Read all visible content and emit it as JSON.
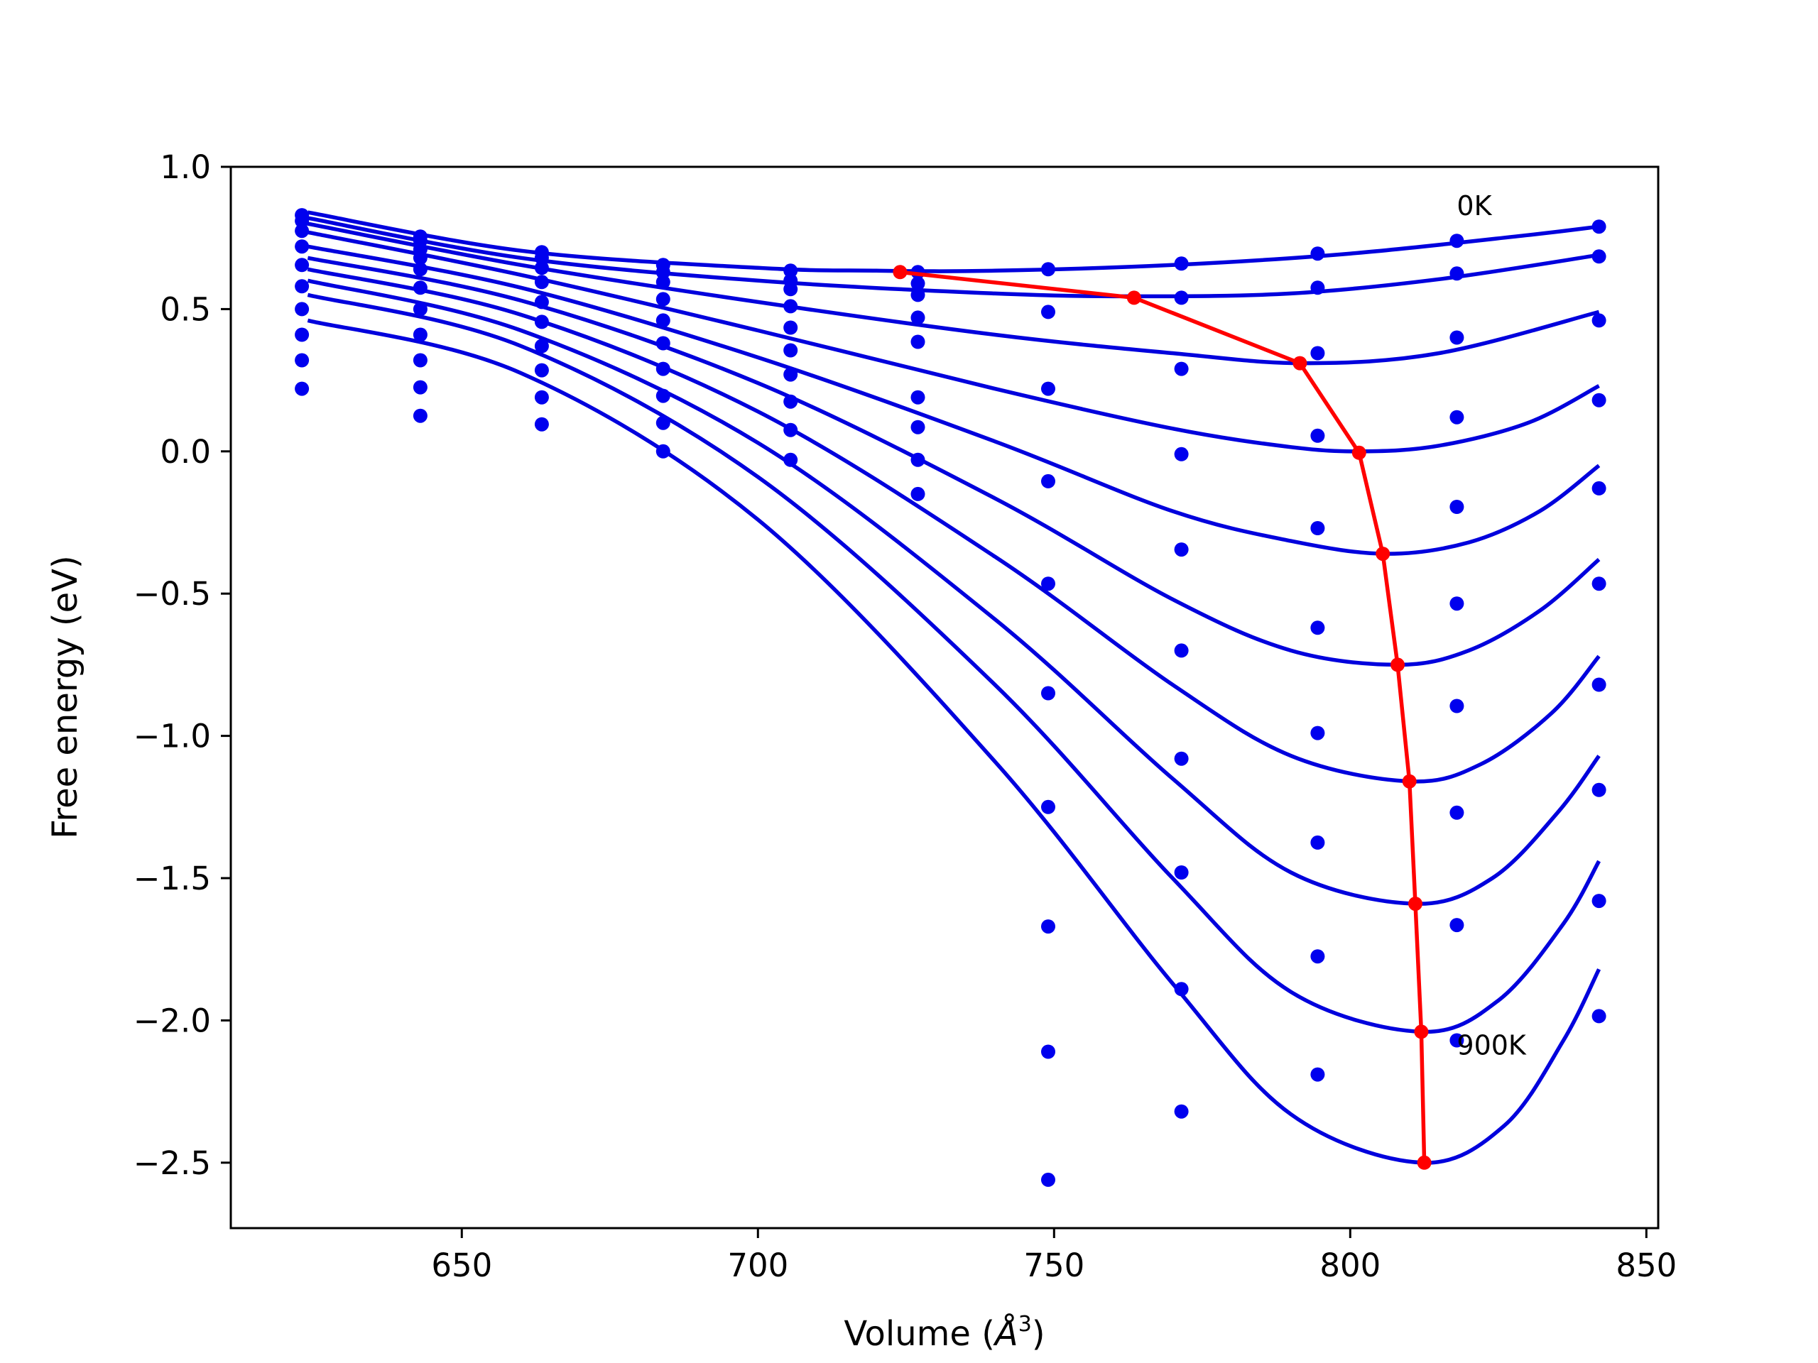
{
  "chart_data": {
    "type": "scatter",
    "title": "",
    "xlabel": "Volume (",
    "xlabel_unit": "Å",
    "xlabel_exp": "3",
    "xlabel_close": ")",
    "ylabel": "Free energy (eV)",
    "xlim": [
      611,
      852
    ],
    "ylim": [
      -2.73,
      1.0
    ],
    "xticks": [
      650,
      700,
      750,
      800,
      850
    ],
    "yticks": [
      1.0,
      0.5,
      0.0,
      -0.5,
      -1.0,
      -1.5,
      -2.0,
      -2.5
    ],
    "xtick_labels": [
      "650",
      "700",
      "750",
      "800",
      "850"
    ],
    "ytick_labels": [
      "1.0",
      "0.5",
      "0.0",
      "−0.5",
      "−1.0",
      "−1.5",
      "−2.0",
      "−2.5"
    ],
    "grid": false,
    "colors": {
      "points": "#0000ee",
      "fits": "#0000dd",
      "minima": "#ff0000"
    },
    "x_volumes": [
      623,
      643,
      663.5,
      684,
      705.5,
      727,
      749,
      771.5,
      794.5,
      818,
      842
    ],
    "series": [
      {
        "values": [
          0.83,
          0.755,
          0.7,
          0.655,
          0.635,
          0.63,
          0.64,
          0.66,
          0.695,
          0.74,
          0.79
        ]
      },
      {
        "values": [
          0.81,
          0.74,
          0.68,
          0.63,
          0.6,
          0.59,
          null,
          0.54,
          0.575,
          0.625,
          0.685
        ]
      },
      {
        "values": [
          0.775,
          0.71,
          0.645,
          0.595,
          0.57,
          0.55,
          0.49,
          null,
          0.345,
          0.4,
          0.46
        ]
      },
      {
        "values": [
          0.72,
          0.68,
          0.595,
          0.535,
          0.51,
          0.47,
          0.22,
          0.29,
          0.055,
          0.12,
          0.18
        ]
      },
      {
        "values": [
          0.655,
          0.64,
          0.525,
          0.46,
          0.435,
          0.385,
          -0.105,
          -0.01,
          -0.27,
          -0.195,
          -0.13
        ]
      },
      {
        "values": [
          0.58,
          0.575,
          0.455,
          0.38,
          0.355,
          0.19,
          -0.465,
          -0.345,
          -0.62,
          -0.535,
          -0.465
        ]
      },
      {
        "values": [
          0.5,
          0.5,
          0.37,
          0.29,
          0.27,
          0.085,
          -0.85,
          -0.7,
          -0.99,
          -0.895,
          -0.82
        ]
      },
      {
        "values": [
          0.41,
          0.41,
          0.285,
          0.195,
          0.175,
          -0.03,
          -1.25,
          -1.08,
          -1.375,
          -1.27,
          -1.19
        ]
      },
      {
        "values": [
          0.32,
          0.32,
          0.19,
          0.1,
          0.075,
          -0.15,
          -1.67,
          -1.48,
          -1.775,
          -1.665,
          -1.58
        ]
      },
      {
        "values": [
          0.22,
          0.225,
          0.095,
          0.0,
          -0.03,
          null,
          -2.11,
          -1.89,
          -2.19,
          -2.07,
          -1.985
        ]
      },
      {
        "values": [
          null,
          0.125,
          null,
          null,
          null,
          null,
          -2.56,
          -2.32,
          null,
          null,
          null
        ]
      }
    ],
    "fit_curves": [
      {
        "x": [
          624,
          660,
          700,
          720,
          740,
          770,
          800,
          830,
          842
        ],
        "y": [
          0.84,
          0.705,
          0.645,
          0.635,
          0.635,
          0.655,
          0.695,
          0.76,
          0.79
        ]
      },
      {
        "x": [
          624,
          660,
          700,
          740,
          764,
          790,
          815,
          842
        ],
        "y": [
          0.82,
          0.68,
          0.6,
          0.555,
          0.545,
          0.555,
          0.605,
          0.69
        ]
      },
      {
        "x": [
          624,
          660,
          700,
          740,
          770,
          792,
          815,
          842
        ],
        "y": [
          0.8,
          0.655,
          0.525,
          0.41,
          0.345,
          0.31,
          0.345,
          0.49
        ]
      },
      {
        "x": [
          624,
          660,
          700,
          740,
          770,
          790,
          802,
          815,
          830,
          842
        ],
        "y": [
          0.77,
          0.62,
          0.425,
          0.22,
          0.08,
          0.015,
          0.0,
          0.02,
          0.1,
          0.23
        ]
      },
      {
        "x": [
          624,
          660,
          700,
          740,
          770,
          790,
          806,
          820,
          832,
          842
        ],
        "y": [
          0.72,
          0.575,
          0.33,
          0.035,
          -0.21,
          -0.315,
          -0.36,
          -0.32,
          -0.21,
          -0.05
        ]
      },
      {
        "x": [
          624,
          660,
          700,
          740,
          770,
          790,
          808,
          820,
          832,
          842
        ],
        "y": [
          0.68,
          0.53,
          0.24,
          -0.165,
          -0.52,
          -0.7,
          -0.75,
          -0.7,
          -0.56,
          -0.38
        ]
      },
      {
        "x": [
          624,
          660,
          700,
          740,
          770,
          790,
          810,
          822,
          834,
          842
        ],
        "y": [
          0.64,
          0.48,
          0.14,
          -0.37,
          -0.82,
          -1.07,
          -1.16,
          -1.1,
          -0.92,
          -0.72
        ]
      },
      {
        "x": [
          624,
          660,
          700,
          740,
          770,
          790,
          811,
          824,
          835,
          842
        ],
        "y": [
          0.6,
          0.425,
          0.03,
          -0.59,
          -1.15,
          -1.48,
          -1.59,
          -1.5,
          -1.27,
          -1.07
        ]
      },
      {
        "x": [
          624,
          660,
          700,
          740,
          770,
          790,
          812,
          825,
          836,
          842
        ],
        "y": [
          0.55,
          0.37,
          -0.09,
          -0.82,
          -1.5,
          -1.9,
          -2.04,
          -1.93,
          -1.66,
          -1.44
        ]
      },
      {
        "x": [
          624,
          660,
          700,
          740,
          770,
          790,
          812,
          826,
          836,
          842
        ],
        "y": [
          0.46,
          0.275,
          -0.24,
          -1.09,
          -1.87,
          -2.33,
          -2.5,
          -2.37,
          -2.07,
          -1.82
        ]
      }
    ],
    "minima_path": {
      "x": [
        724,
        763.5,
        791.5,
        801.5,
        805.5,
        808,
        810,
        811,
        812,
        812.5
      ],
      "y": [
        0.63,
        0.54,
        0.31,
        -0.005,
        -0.36,
        -0.75,
        -1.16,
        -1.59,
        -2.04,
        -2.5
      ]
    },
    "annotations": [
      {
        "text": "0K",
        "x": 818,
        "y": 0.83
      },
      {
        "text": "900K",
        "x": 818,
        "y": -2.12
      }
    ]
  }
}
